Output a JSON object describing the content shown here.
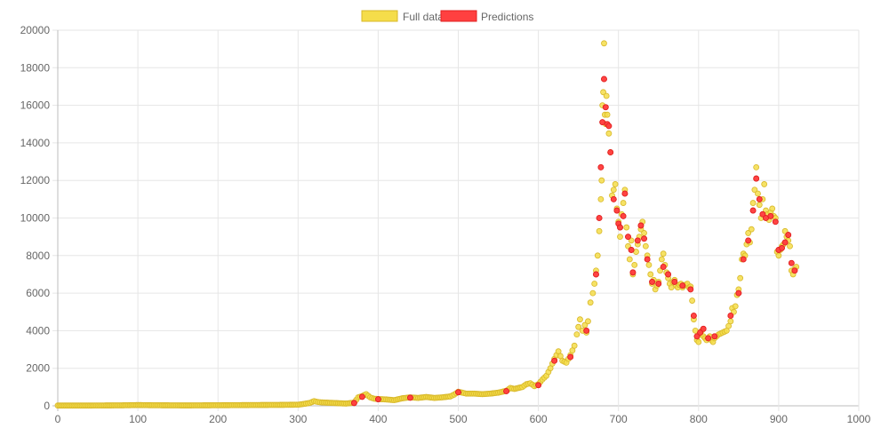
{
  "chart_data": {
    "type": "scatter",
    "title": "",
    "xlabel": "",
    "ylabel": "",
    "xlim": [
      0,
      1000
    ],
    "ylim": [
      0,
      20000
    ],
    "x_ticks": [
      "0",
      "100",
      "200",
      "300",
      "400",
      "500",
      "600",
      "700",
      "800",
      "900",
      "1000"
    ],
    "y_ticks": [
      "0",
      "2000",
      "4000",
      "6000",
      "8000",
      "10000",
      "12000",
      "14000",
      "16000",
      "18000",
      "20000"
    ],
    "grid": true,
    "legend_position": "top-center",
    "series": [
      {
        "name": "Full data",
        "color": "#f5dd4a",
        "border_color": "#d8b82a",
        "points": [
          [
            0,
            15
          ],
          [
            20,
            15
          ],
          [
            40,
            15
          ],
          [
            60,
            20
          ],
          [
            80,
            25
          ],
          [
            100,
            40
          ],
          [
            120,
            30
          ],
          [
            140,
            25
          ],
          [
            160,
            20
          ],
          [
            180,
            25
          ],
          [
            200,
            30
          ],
          [
            220,
            35
          ],
          [
            240,
            40
          ],
          [
            260,
            45
          ],
          [
            280,
            50
          ],
          [
            300,
            60
          ],
          [
            310,
            120
          ],
          [
            315,
            160
          ],
          [
            320,
            250
          ],
          [
            325,
            200
          ],
          [
            330,
            180
          ],
          [
            340,
            160
          ],
          [
            350,
            140
          ],
          [
            360,
            120
          ],
          [
            370,
            170
          ],
          [
            375,
            450
          ],
          [
            380,
            520
          ],
          [
            385,
            620
          ],
          [
            390,
            450
          ],
          [
            395,
            380
          ],
          [
            400,
            360
          ],
          [
            410,
            340
          ],
          [
            420,
            300
          ],
          [
            430,
            400
          ],
          [
            440,
            450
          ],
          [
            450,
            420
          ],
          [
            460,
            470
          ],
          [
            470,
            420
          ],
          [
            480,
            450
          ],
          [
            490,
            500
          ],
          [
            495,
            600
          ],
          [
            500,
            750
          ],
          [
            505,
            700
          ],
          [
            510,
            650
          ],
          [
            520,
            650
          ],
          [
            530,
            620
          ],
          [
            540,
            650
          ],
          [
            550,
            700
          ],
          [
            560,
            800
          ],
          [
            565,
            950
          ],
          [
            570,
            900
          ],
          [
            580,
            1000
          ],
          [
            585,
            1150
          ],
          [
            590,
            1200
          ],
          [
            595,
            1050
          ],
          [
            600,
            1150
          ],
          [
            605,
            1400
          ],
          [
            610,
            1600
          ],
          [
            615,
            2000
          ],
          [
            620,
            2500
          ],
          [
            625,
            2900
          ],
          [
            630,
            2400
          ],
          [
            635,
            2300
          ],
          [
            640,
            2700
          ],
          [
            645,
            3200
          ],
          [
            648,
            3800
          ],
          [
            650,
            4200
          ],
          [
            652,
            4600
          ],
          [
            655,
            4000
          ],
          [
            658,
            4300
          ],
          [
            660,
            3900
          ],
          [
            662,
            4500
          ],
          [
            665,
            5500
          ],
          [
            668,
            6000
          ],
          [
            670,
            6500
          ],
          [
            672,
            7200
          ],
          [
            674,
            8000
          ],
          [
            676,
            9300
          ],
          [
            678,
            11000
          ],
          [
            679,
            12000
          ],
          [
            680,
            16000
          ],
          [
            681,
            16700
          ],
          [
            682,
            19300
          ],
          [
            683,
            15500
          ],
          [
            684,
            15000
          ],
          [
            685,
            16500
          ],
          [
            686,
            15500
          ],
          [
            688,
            14500
          ],
          [
            690,
            13500
          ],
          [
            692,
            11200
          ],
          [
            694,
            11500
          ],
          [
            696,
            11800
          ],
          [
            698,
            10500
          ],
          [
            700,
            9800
          ],
          [
            702,
            9000
          ],
          [
            704,
            10200
          ],
          [
            706,
            10800
          ],
          [
            708,
            11500
          ],
          [
            710,
            9500
          ],
          [
            712,
            8500
          ],
          [
            714,
            7800
          ],
          [
            716,
            8800
          ],
          [
            718,
            7000
          ],
          [
            720,
            7500
          ],
          [
            722,
            8200
          ],
          [
            724,
            8600
          ],
          [
            726,
            9000
          ],
          [
            728,
            9400
          ],
          [
            730,
            9800
          ],
          [
            732,
            9200
          ],
          [
            734,
            8500
          ],
          [
            736,
            8000
          ],
          [
            738,
            7500
          ],
          [
            740,
            7000
          ],
          [
            742,
            6500
          ],
          [
            744,
            6700
          ],
          [
            746,
            6200
          ],
          [
            748,
            6400
          ],
          [
            750,
            6600
          ],
          [
            752,
            7200
          ],
          [
            754,
            7800
          ],
          [
            756,
            8100
          ],
          [
            758,
            7500
          ],
          [
            760,
            7100
          ],
          [
            762,
            6800
          ],
          [
            764,
            6500
          ],
          [
            766,
            6300
          ],
          [
            768,
            6600
          ],
          [
            770,
            6700
          ],
          [
            772,
            6400
          ],
          [
            774,
            6300
          ],
          [
            776,
            6450
          ],
          [
            778,
            6500
          ],
          [
            780,
            6300
          ],
          [
            782,
            6400
          ],
          [
            784,
            6450
          ],
          [
            786,
            6500
          ],
          [
            788,
            6300
          ],
          [
            790,
            6350
          ],
          [
            792,
            5600
          ],
          [
            794,
            4600
          ],
          [
            796,
            4000
          ],
          [
            798,
            3500
          ],
          [
            800,
            3400
          ],
          [
            802,
            3800
          ],
          [
            804,
            4000
          ],
          [
            806,
            3700
          ],
          [
            808,
            3600
          ],
          [
            810,
            3500
          ],
          [
            812,
            3600
          ],
          [
            814,
            3700
          ],
          [
            816,
            3500
          ],
          [
            818,
            3400
          ],
          [
            820,
            3600
          ],
          [
            825,
            3800
          ],
          [
            830,
            3900
          ],
          [
            835,
            4000
          ],
          [
            840,
            4500
          ],
          [
            842,
            5200
          ],
          [
            844,
            5000
          ],
          [
            846,
            5300
          ],
          [
            848,
            5900
          ],
          [
            850,
            6200
          ],
          [
            852,
            6800
          ],
          [
            854,
            7800
          ],
          [
            856,
            8100
          ],
          [
            858,
            8000
          ],
          [
            860,
            8600
          ],
          [
            862,
            9200
          ],
          [
            864,
            8700
          ],
          [
            866,
            9400
          ],
          [
            868,
            10800
          ],
          [
            870,
            11500
          ],
          [
            872,
            12700
          ],
          [
            874,
            11300
          ],
          [
            876,
            10700
          ],
          [
            878,
            10000
          ],
          [
            880,
            11000
          ],
          [
            882,
            11800
          ],
          [
            884,
            10400
          ],
          [
            886,
            10200
          ],
          [
            888,
            9900
          ],
          [
            890,
            10300
          ],
          [
            892,
            10500
          ],
          [
            894,
            10100
          ],
          [
            896,
            10000
          ],
          [
            898,
            8200
          ],
          [
            900,
            8000
          ],
          [
            902,
            8300
          ],
          [
            904,
            8500
          ],
          [
            906,
            8600
          ],
          [
            908,
            9300
          ],
          [
            910,
            9000
          ],
          [
            912,
            8800
          ],
          [
            914,
            8500
          ],
          [
            916,
            7200
          ],
          [
            918,
            7000
          ],
          [
            920,
            7300
          ],
          [
            922,
            7400
          ]
        ]
      },
      {
        "name": "Predictions",
        "color": "#ff4040",
        "border_color": "#e02020",
        "points": [
          [
            370,
            150
          ],
          [
            380,
            480
          ],
          [
            400,
            350
          ],
          [
            440,
            430
          ],
          [
            500,
            720
          ],
          [
            560,
            780
          ],
          [
            600,
            1100
          ],
          [
            620,
            2400
          ],
          [
            640,
            2600
          ],
          [
            660,
            4000
          ],
          [
            672,
            7000
          ],
          [
            676,
            10000
          ],
          [
            678,
            12700
          ],
          [
            680,
            15100
          ],
          [
            682,
            17400
          ],
          [
            684,
            15900
          ],
          [
            686,
            15000
          ],
          [
            688,
            14900
          ],
          [
            690,
            13500
          ],
          [
            694,
            11000
          ],
          [
            698,
            10400
          ],
          [
            700,
            9700
          ],
          [
            702,
            9500
          ],
          [
            706,
            10100
          ],
          [
            708,
            11300
          ],
          [
            712,
            9000
          ],
          [
            716,
            8300
          ],
          [
            718,
            7100
          ],
          [
            724,
            8800
          ],
          [
            728,
            9600
          ],
          [
            732,
            8900
          ],
          [
            736,
            7800
          ],
          [
            742,
            6600
          ],
          [
            750,
            6500
          ],
          [
            756,
            7400
          ],
          [
            762,
            7000
          ],
          [
            770,
            6600
          ],
          [
            780,
            6400
          ],
          [
            790,
            6200
          ],
          [
            794,
            4800
          ],
          [
            798,
            3700
          ],
          [
            802,
            3900
          ],
          [
            806,
            4100
          ],
          [
            812,
            3600
          ],
          [
            820,
            3700
          ],
          [
            840,
            4800
          ],
          [
            850,
            6000
          ],
          [
            856,
            7800
          ],
          [
            862,
            8800
          ],
          [
            868,
            10400
          ],
          [
            872,
            12100
          ],
          [
            876,
            11000
          ],
          [
            880,
            10200
          ],
          [
            884,
            10000
          ],
          [
            890,
            10100
          ],
          [
            896,
            9800
          ],
          [
            900,
            8300
          ],
          [
            904,
            8400
          ],
          [
            908,
            8700
          ],
          [
            912,
            9100
          ],
          [
            916,
            7600
          ],
          [
            920,
            7200
          ]
        ]
      }
    ]
  }
}
